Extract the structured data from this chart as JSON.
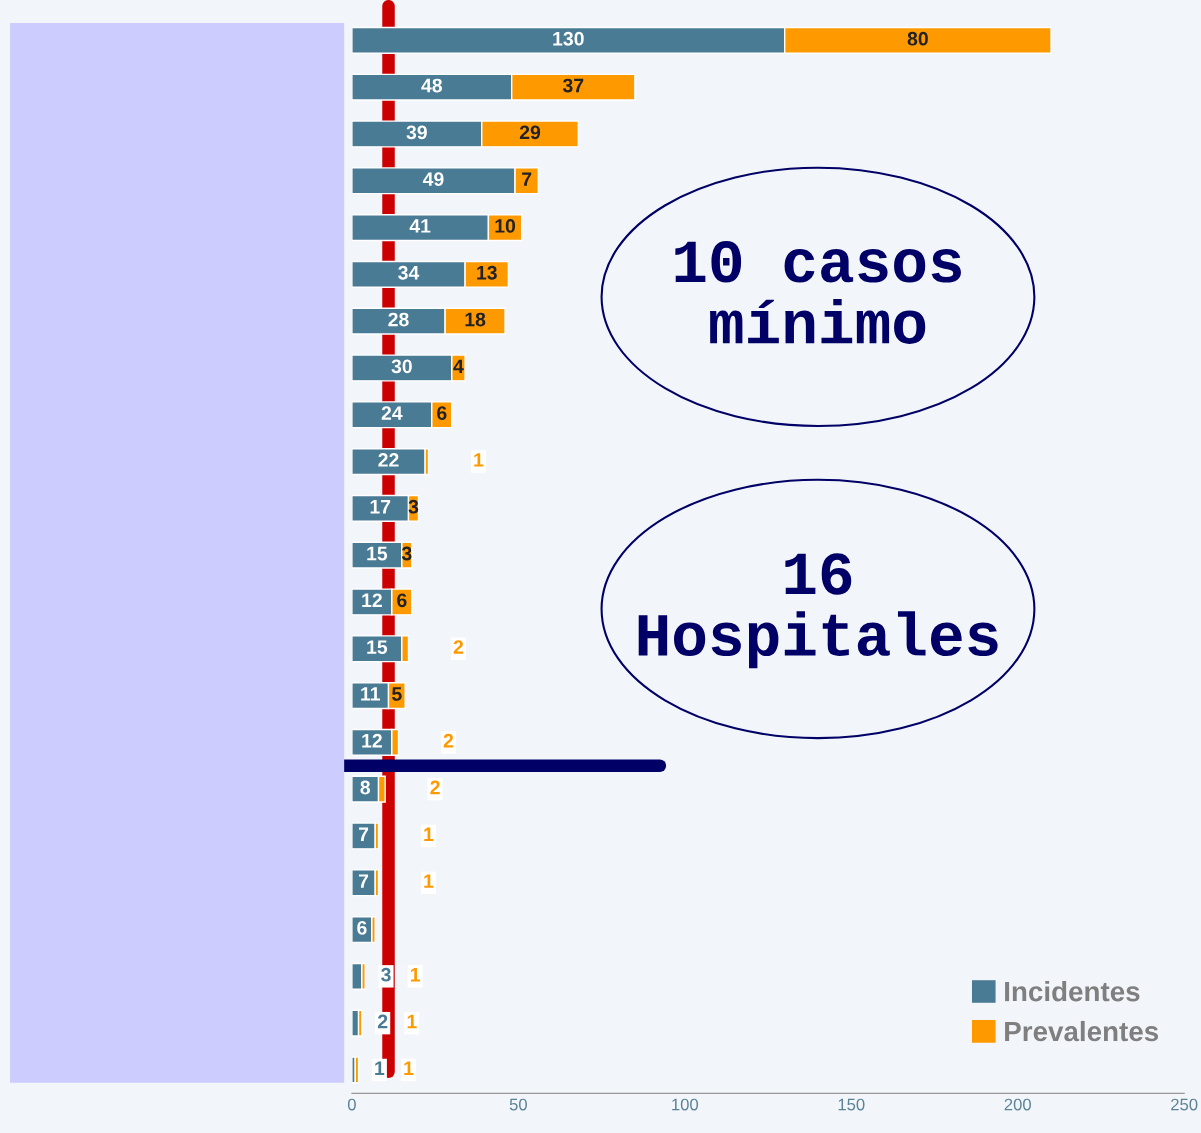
{
  "chart_data": {
    "type": "bar",
    "orientation": "horizontal",
    "stacked": true,
    "categories": [
      null,
      null,
      null,
      null,
      null,
      null,
      null,
      null,
      null,
      null,
      null,
      null,
      null,
      null,
      null,
      null,
      null,
      null,
      null,
      null,
      null,
      null,
      null
    ],
    "series": [
      {
        "name": "Incidentes",
        "color": "#4a7b94",
        "values": [
          130,
          48,
          39,
          49,
          41,
          34,
          28,
          30,
          24,
          22,
          17,
          15,
          12,
          15,
          11,
          12,
          8,
          7,
          7,
          6,
          3,
          2,
          1
        ],
        "value_labels": [
          "130",
          "48",
          "39",
          "49",
          "41",
          "34",
          "28",
          "30",
          "24",
          "22",
          "17",
          "15",
          "12",
          "15",
          "11",
          "12",
          "8",
          "7",
          "7",
          "6",
          "3",
          "2",
          "1"
        ]
      },
      {
        "name": "Prevalentes",
        "color": "#ff9900",
        "values": [
          80,
          37,
          29,
          7,
          10,
          13,
          18,
          4,
          6,
          1,
          3,
          3,
          6,
          2,
          5,
          2,
          2,
          1,
          1,
          1,
          1,
          1,
          1
        ],
        "value_labels": [
          "80",
          "37",
          "29",
          "7",
          "10",
          "13",
          "18",
          "4",
          "6",
          "1",
          "3",
          "3",
          "6",
          "2",
          "5",
          "2",
          "2",
          "1",
          "1",
          null,
          "1",
          "1",
          "1"
        ]
      }
    ],
    "xlim": [
      0,
      250
    ],
    "xticks": [
      0,
      50,
      100,
      150,
      200,
      250
    ],
    "tick_labels": "x",
    "grid": false,
    "legend": "bottom right",
    "ref_lines": [
      {
        "axis": "x",
        "value": 11,
        "color": "#cc0000"
      }
    ],
    "annotations": [
      "10 casos\nmínimo",
      "16\nHospitales"
    ]
  }
}
